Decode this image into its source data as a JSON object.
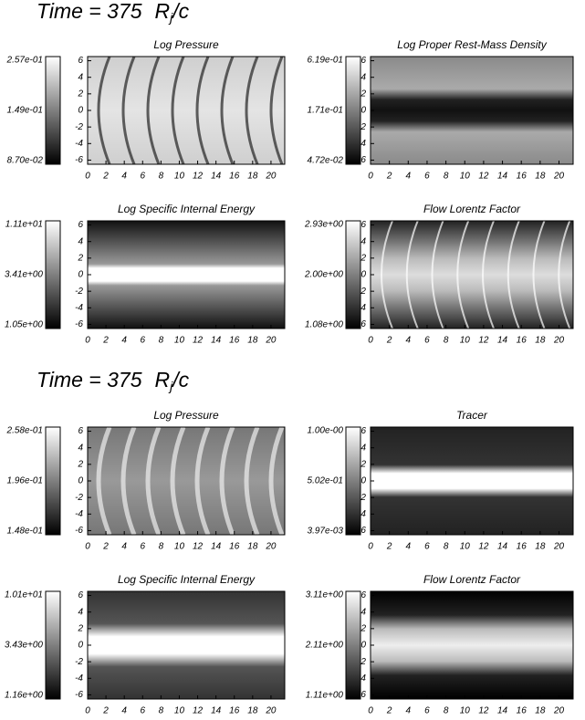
{
  "xticks": [
    0,
    2,
    4,
    6,
    8,
    10,
    12,
    14,
    16,
    18,
    20
  ],
  "yticks": [
    6,
    4,
    2,
    0,
    -2,
    -4,
    -6
  ],
  "sections": [
    {
      "time": "Time = 375",
      "unit": "R",
      "unit_sub": "j",
      "unit_tail": "/c",
      "panels": [
        {
          "title": "Log Pressure",
          "colorbar": [
            "2.57e-01",
            "1.49e-01",
            "8.70e-02"
          ]
        },
        {
          "title": "Log Proper Rest-Mass Density",
          "colorbar": [
            "6.19e-01",
            "1.71e-01",
            "4.72e-02"
          ]
        },
        {
          "title": "Log Specific Internal Energy",
          "colorbar": [
            "1.11e+01",
            "3.41e+00",
            "1.05e+00"
          ]
        },
        {
          "title": "Flow Lorentz Factor",
          "colorbar": [
            "2.93e+00",
            "2.00e+00",
            "1.08e+00"
          ]
        }
      ]
    },
    {
      "time": "Time = 375",
      "unit": "R",
      "unit_sub": "j",
      "unit_tail": "/c",
      "panels": [
        {
          "title": "Log Pressure",
          "colorbar": [
            "2.58e-01",
            "1.96e-01",
            "1.48e-01"
          ]
        },
        {
          "title": "Tracer",
          "colorbar": [
            "1.00e-00",
            "5.02e-01",
            "3.97e-03"
          ]
        },
        {
          "title": "Log Specific Internal Energy",
          "colorbar": [
            "1.01e+01",
            "3.43e+00",
            "1.16e+00"
          ]
        },
        {
          "title": "Flow Lorentz Factor",
          "colorbar": [
            "3.11e+00",
            "2.11e+00",
            "1.11e+00"
          ]
        }
      ]
    }
  ]
}
